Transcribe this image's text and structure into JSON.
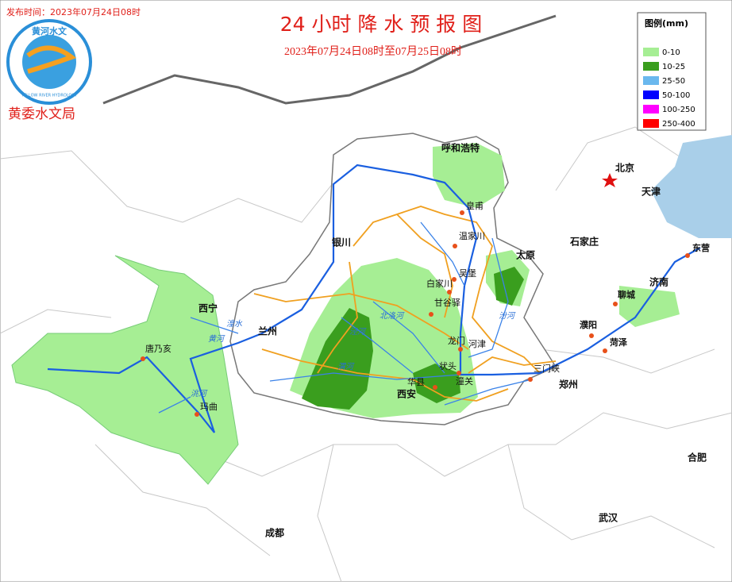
{
  "header": {
    "publish_time": "发布时间：2023年07月24日08时",
    "title": "24 小时 降 水 预 报 图",
    "subtitle": "2023年07月24日08时至07月25日08时",
    "agency": "黄委水文局",
    "logo_text": "黄河水文",
    "logo_subtext": "YELLOW RIVER HYDROLOGY"
  },
  "legend": {
    "title": "图例(mm)",
    "items": [
      {
        "label": "0-10",
        "color": "#a6ee94"
      },
      {
        "label": "10-25",
        "color": "#3a9e1e"
      },
      {
        "label": "25-50",
        "color": "#6ab8ee"
      },
      {
        "label": "50-100",
        "color": "#0000ff"
      },
      {
        "label": "100-250",
        "color": "#ff00ff"
      },
      {
        "label": "250-400",
        "color": "#ff0000"
      }
    ]
  },
  "cities": [
    "北京",
    "天津",
    "石家庄",
    "太原",
    "济南",
    "聊城",
    "濮阳",
    "菏泽",
    "东营",
    "郑州",
    "合肥",
    "武汉",
    "成都",
    "西安",
    "兰州",
    "西宁",
    "银川",
    "呼和浩特"
  ],
  "stations": [
    "皇甫",
    "温家川",
    "吴堡",
    "白家川",
    "甘谷驿",
    "龙门",
    "河津",
    "华县",
    "状头",
    "潼关",
    "三门峡",
    "唐乃亥",
    "玛曲"
  ],
  "rivers": [
    "黄河",
    "湟水",
    "洮河",
    "渭河",
    "泾河",
    "北洛河",
    "汾河"
  ]
}
